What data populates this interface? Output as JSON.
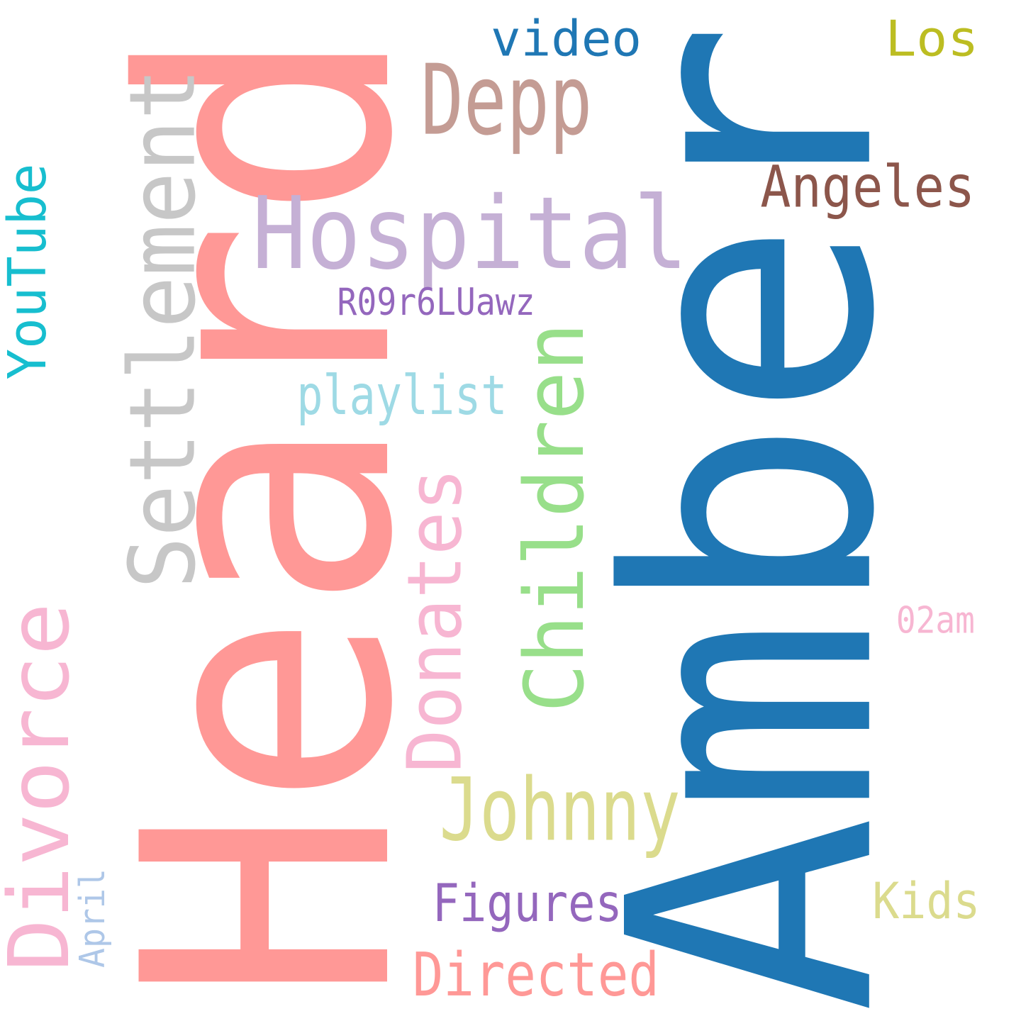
{
  "words": [
    {
      "text": "Amber",
      "color": "#1f77b4",
      "orientation": "vertical"
    },
    {
      "text": "Heard",
      "color": "#ff9896",
      "orientation": "vertical"
    },
    {
      "text": "Settlement",
      "color": "#c7c7c7",
      "orientation": "vertical"
    },
    {
      "text": "Hospital",
      "color": "#c5b0d5",
      "orientation": "horizontal"
    },
    {
      "text": "Children",
      "color": "#98df8a",
      "orientation": "vertical"
    },
    {
      "text": "Divorce",
      "color": "#f7b6d2",
      "orientation": "vertical"
    },
    {
      "text": "Donates",
      "color": "#f7b6d2",
      "orientation": "vertical"
    },
    {
      "text": "Johnny",
      "color": "#dbdb8d",
      "orientation": "horizontal"
    },
    {
      "text": "Depp",
      "color": "#c49c94",
      "orientation": "horizontal"
    },
    {
      "text": "YouTube",
      "color": "#17becf",
      "orientation": "vertical"
    },
    {
      "text": "Angeles",
      "color": "#8c564b",
      "orientation": "horizontal"
    },
    {
      "text": "Directed",
      "color": "#ff9896",
      "orientation": "horizontal"
    },
    {
      "text": "video",
      "color": "#1f77b4",
      "orientation": "horizontal"
    },
    {
      "text": "playlist",
      "color": "#9edae5",
      "orientation": "horizontal"
    },
    {
      "text": "Figures",
      "color": "#9467bd",
      "orientation": "horizontal"
    },
    {
      "text": "Los",
      "color": "#bcbd22",
      "orientation": "horizontal"
    },
    {
      "text": "Kids",
      "color": "#dbdb8d",
      "orientation": "horizontal"
    },
    {
      "text": "R09r6LUawz",
      "color": "#9467bd",
      "orientation": "horizontal"
    },
    {
      "text": "April",
      "color": "#aec7e8",
      "orientation": "vertical"
    },
    {
      "text": "02am",
      "color": "#f7b6d2",
      "orientation": "horizontal"
    }
  ]
}
